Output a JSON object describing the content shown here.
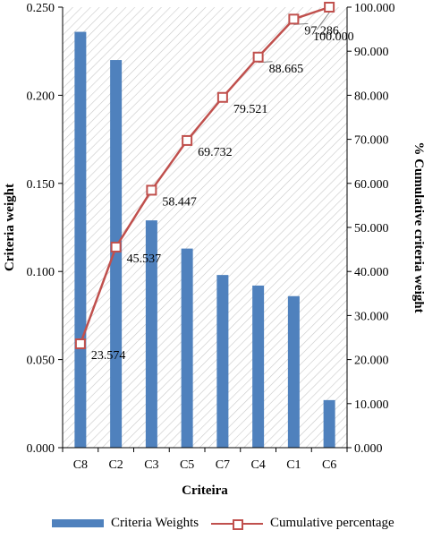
{
  "chart_data": {
    "type": "bar",
    "xlabel": "Criteira",
    "ylabel": "Criteria weight",
    "y2label": "% Cumulative criteria weight",
    "categories": [
      "C8",
      "C2",
      "C3",
      "C5",
      "C7",
      "C4",
      "C1",
      "C6"
    ],
    "ylim": [
      0,
      0.25
    ],
    "y2lim": [
      0,
      100
    ],
    "yticks": [
      "0.000",
      "0.050",
      "0.100",
      "0.150",
      "0.200",
      "0.250"
    ],
    "y2ticks": [
      "0.000",
      "10.000",
      "20.000",
      "30.000",
      "40.000",
      "50.000",
      "60.000",
      "70.000",
      "80.000",
      "90.000",
      "100.000"
    ],
    "grid": false,
    "legend_position": "bottom",
    "series": [
      {
        "name": "Criteria Weights",
        "type": "bar",
        "axis": "left",
        "color": "#4f81bd",
        "values": [
          0.236,
          0.22,
          0.129,
          0.113,
          0.098,
          0.092,
          0.086,
          0.027
        ]
      },
      {
        "name": "Cumulative  percentage",
        "type": "line",
        "axis": "right",
        "color": "#c0504d",
        "values": [
          23.574,
          45.537,
          58.447,
          69.732,
          79.521,
          88.665,
          97.286,
          100.0
        ],
        "labels": [
          "23.574",
          "45.537",
          "58.447",
          "69.732",
          "79.521",
          "88.665",
          "97.286",
          "100.000"
        ]
      }
    ]
  }
}
